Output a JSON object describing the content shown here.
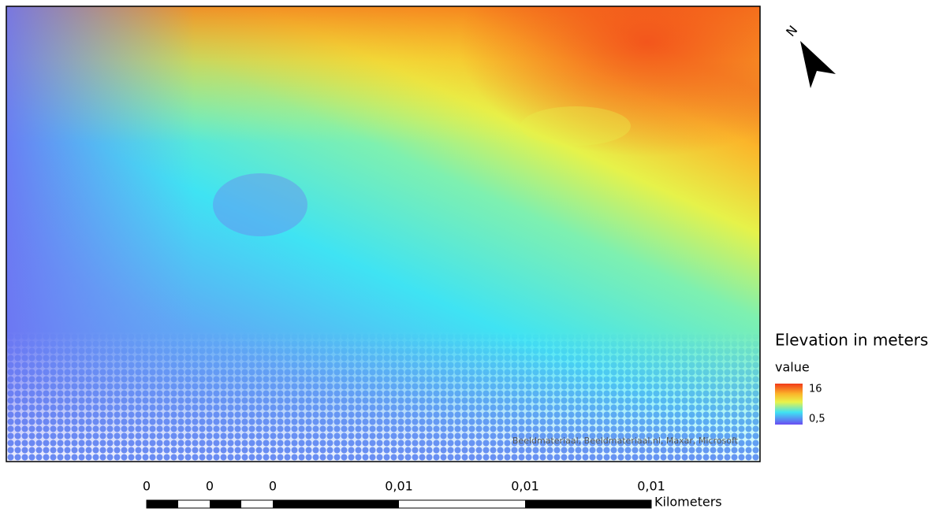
{
  "map": {
    "attribution": "Beeldmateriaal, Beeldmateriaal.nl, Maxar, Microsoft"
  },
  "north_arrow": {
    "label": "N"
  },
  "legend": {
    "title": "Elevation in meters",
    "field": "value",
    "high": "16",
    "low": "0,5"
  },
  "scale_bar": {
    "labels": [
      "0",
      "0",
      "0",
      "0,01",
      "0,01",
      "0,01"
    ],
    "unit": "Kilometers"
  }
}
